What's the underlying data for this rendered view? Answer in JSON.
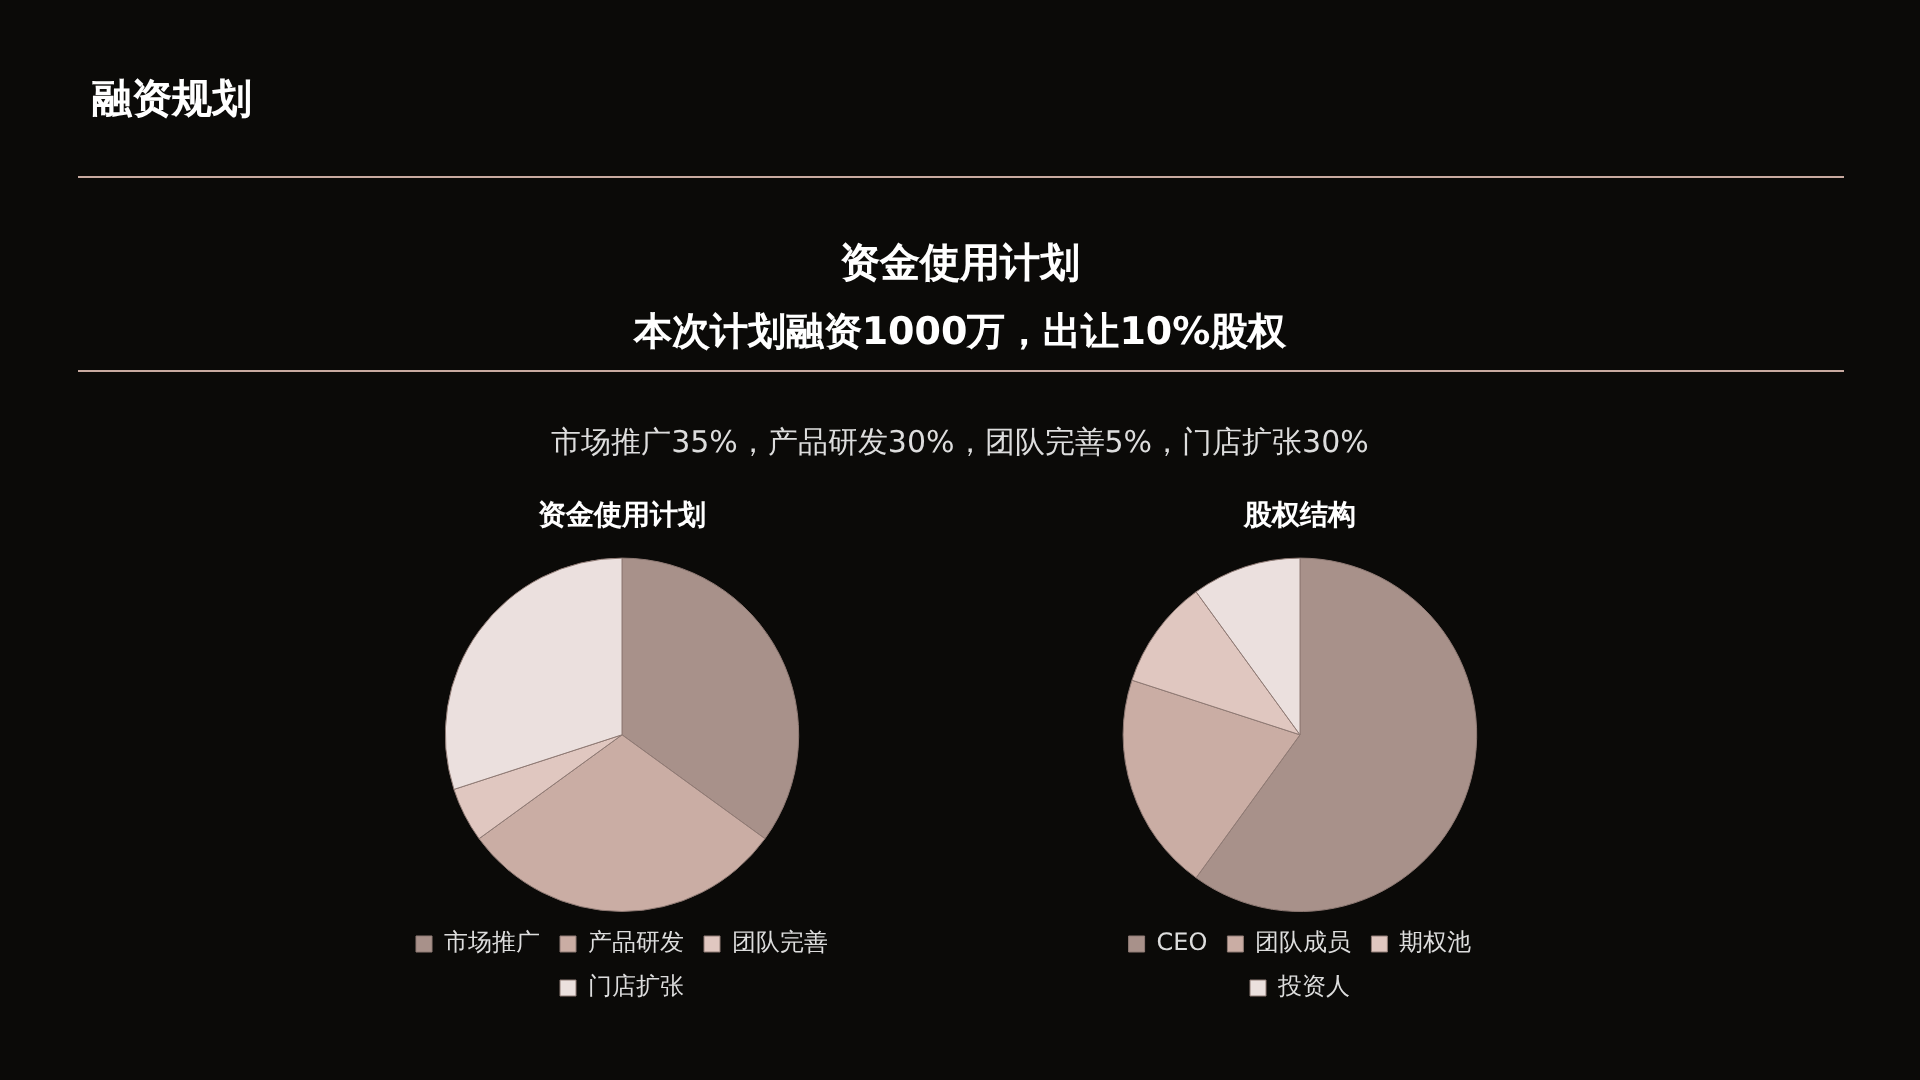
{
  "chart_data": [
    {
      "type": "other",
      "title": "融资规划",
      "annotations": [
        "资金使用计划",
        "本次计划融资1000万，出让10%股权",
        "市场推广35%，产品研发30%，团队完善5%，门店扩张30%"
      ]
    },
    {
      "type": "pie",
      "title": "资金使用计划",
      "categories": [
        "市场推广",
        "产品研发",
        "团队完善",
        "门店扩张"
      ],
      "values": [
        35,
        30,
        5,
        30
      ],
      "colors": [
        "#a8918a",
        "#caada4",
        "#e0c7c0",
        "#ebe0de"
      ],
      "legend": "bottom"
    },
    {
      "type": "pie",
      "title": "股权结构",
      "categories": [
        "CEO",
        "团队成员",
        "期权池",
        "投资人"
      ],
      "values": [
        60,
        20,
        10,
        10
      ],
      "colors": [
        "#a8918a",
        "#caada4",
        "#e0c7c0",
        "#ebe0de"
      ],
      "legend": "bottom"
    }
  ]
}
